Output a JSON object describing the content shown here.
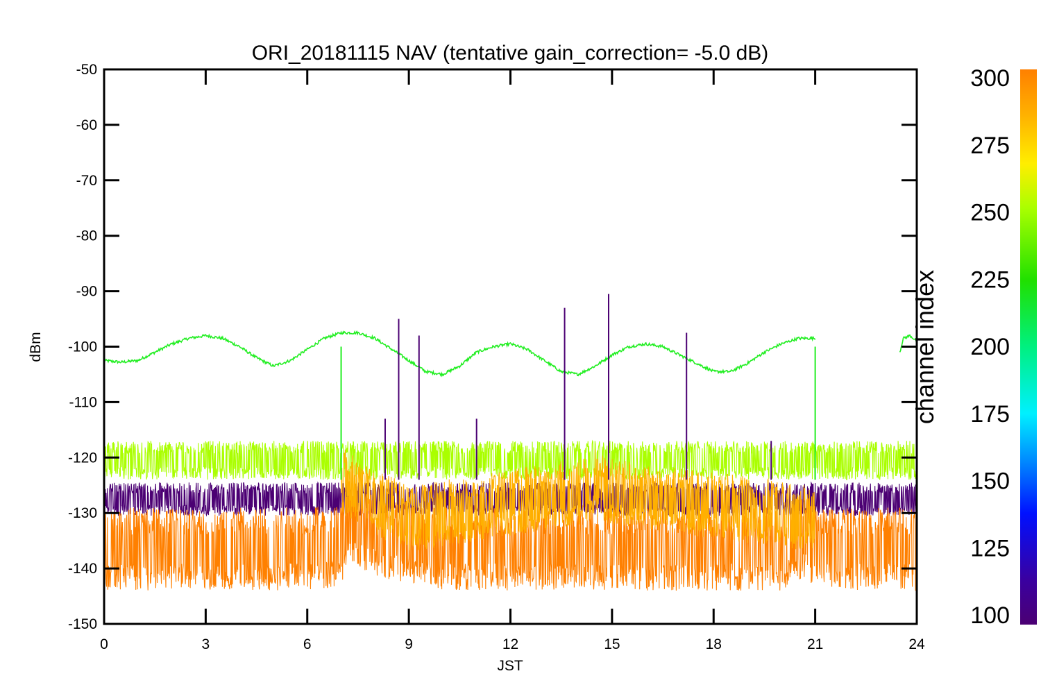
{
  "chart_data": {
    "type": "line",
    "title": "ORI_20181115 NAV (tentative gain_correction= -5.0 dB)",
    "xlabel": "JST",
    "ylabel": "dBm",
    "xlim": [
      0,
      24
    ],
    "ylim": [
      -150,
      -50
    ],
    "x_ticks": [
      "0",
      "3",
      "6",
      "9",
      "12",
      "15",
      "18",
      "21",
      "24"
    ],
    "y_ticks": [
      "-50",
      "-60",
      "-70",
      "-80",
      "-90",
      "-100",
      "-110",
      "-120",
      "-130",
      "-140",
      "-150"
    ],
    "grid": false,
    "colorbar": {
      "label": "channel index",
      "range": [
        100,
        300
      ],
      "ticks": [
        "300",
        "275",
        "250",
        "225",
        "200",
        "175",
        "150",
        "125",
        "100"
      ],
      "colormap": [
        "#4b0073",
        "#3a00a0",
        "#0010ff",
        "#0090ff",
        "#00f0ff",
        "#00f080",
        "#20e000",
        "#aaff00",
        "#ffee00",
        "#ffb000",
        "#ff8000"
      ]
    },
    "series": [
      {
        "color": "#22ee22",
        "x": [
          0,
          0.5,
          1,
          1.5,
          2,
          2.5,
          3,
          3.5,
          4,
          4.5,
          5,
          5.5,
          6,
          6.5,
          7,
          7.5,
          8,
          8.5,
          9,
          9.5,
          10,
          10.5,
          11,
          11.5,
          12,
          12.5,
          13,
          13.5,
          14,
          14.5,
          15,
          15.5,
          16,
          16.5,
          17,
          17.5,
          18,
          18.5,
          19,
          19.5,
          20,
          20.5,
          21
        ],
        "y": [
          -102.5,
          -102.8,
          -102.5,
          -101,
          -99.5,
          -98.5,
          -98,
          -98.5,
          -100,
          -102,
          -103.5,
          -102.5,
          -100.5,
          -98.5,
          -97.5,
          -97.5,
          -98.5,
          -100.5,
          -102.5,
          -104.5,
          -105,
          -103.5,
          -101,
          -100,
          -99.5,
          -100.5,
          -102.5,
          -104.5,
          -105,
          -103.5,
          -101.5,
          -100,
          -99.5,
          -100,
          -101.5,
          -103,
          -104.5,
          -104.5,
          -103,
          -101,
          -99.5,
          -98.5,
          -98.5
        ]
      },
      {
        "color": "#22ee22",
        "x": [
          23.5,
          23.6,
          23.8,
          24
        ],
        "y": [
          -101,
          -98.5,
          -98,
          -99
        ]
      },
      {
        "color": "#aaff00",
        "x": [
          0,
          24
        ],
        "y": [
          -120.5,
          -120.5
        ],
        "band": [
          -124,
          -117
        ]
      },
      {
        "color": "#4b0073",
        "x": [
          0,
          24
        ],
        "y": [
          -127.5,
          -127.5
        ],
        "band": [
          -131,
          -125
        ]
      },
      {
        "color": "#ff8000",
        "x": [
          0,
          6,
          7,
          7.2,
          8,
          10,
          12,
          14,
          16,
          18,
          20,
          20.7,
          21,
          24
        ],
        "y": [
          -136.5,
          -136.5,
          -136,
          -131,
          -134,
          -136.5,
          -136.5,
          -136.5,
          -136.5,
          -136.5,
          -136.5,
          -134,
          -136.5,
          -136.5
        ],
        "band": [
          -144,
          -129
        ]
      },
      {
        "color": "#ffb000",
        "x": [
          7,
          8,
          9,
          14.2,
          14.5,
          14.8,
          21
        ],
        "y": [
          -124,
          -128,
          -131,
          -126,
          -124.5,
          -126,
          -131
        ],
        "band": [
          -133,
          -121
        ]
      },
      {
        "color": "#4b0073",
        "x": [
          8.3,
          8.7,
          9.3,
          11.0,
          13.6,
          14.9,
          17.2,
          19.7
        ],
        "y": [
          -113,
          -95,
          -98,
          -113,
          -93,
          -90.5,
          -97.5,
          -117
        ],
        "spike": true
      },
      {
        "color": "#22ee22",
        "x": [
          7.0,
          21.0
        ],
        "y": [
          -100,
          -100
        ],
        "spike": true
      }
    ]
  }
}
